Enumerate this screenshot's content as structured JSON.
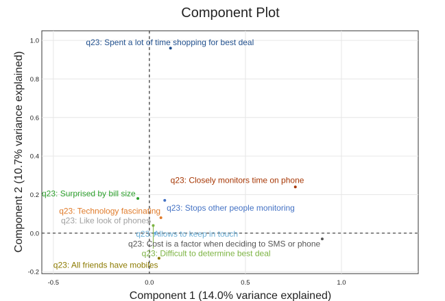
{
  "chart_data": {
    "type": "scatter",
    "title": "Component Plot",
    "xlabel": "Component 1 (14.0% variance explained)",
    "ylabel": "Component 2 (10.7% variance explained)",
    "xlim": [
      -0.56,
      1.4
    ],
    "ylim": [
      -0.21,
      1.05
    ],
    "xticks": [
      -0.5,
      0.0,
      0.5,
      1.0
    ],
    "xtick_labels": [
      "-0.5",
      "0.0",
      "0.5",
      "1.0"
    ],
    "yticks": [
      -0.2,
      0.0,
      0.2,
      0.4,
      0.6,
      0.8,
      1.0
    ],
    "ytick_labels": [
      "-0.2",
      "0.0",
      "0.2",
      "0.4",
      "0.6",
      "0.8",
      "1.0"
    ],
    "grid": true,
    "reference_lines": {
      "x": 0.0,
      "y": 0.0,
      "style": "dashed"
    },
    "points": [
      {
        "label": "q23: Spent a lot of time shopping for best deal",
        "x": 0.11,
        "y": 0.96,
        "color": "#1f4e8c",
        "label_x": -0.33,
        "label_y": 0.99
      },
      {
        "label": "q23: Closely monitors time on phone",
        "x": 0.76,
        "y": 0.24,
        "color": "#a63603",
        "label_x": 0.11,
        "label_y": 0.275
      },
      {
        "label": "q23: Surprised by bill size",
        "x": -0.06,
        "y": 0.18,
        "color": "#2ca02c",
        "label_x": -0.56,
        "label_y": 0.205
      },
      {
        "label": "q23: Stops other people monitoring",
        "x": 0.08,
        "y": 0.17,
        "color": "#4472c4",
        "label_x": 0.09,
        "label_y": 0.13
      },
      {
        "label": "q23: Technology fascinating",
        "x": 0.06,
        "y": 0.08,
        "color": "#e07b2a",
        "label_x": -0.47,
        "label_y": 0.115
      },
      {
        "label": "q23: Like look of phones",
        "x": 0.0,
        "y": 0.06,
        "color": "#a0a0a0",
        "label_x": -0.46,
        "label_y": 0.065
      },
      {
        "label": "q23: Allows to keep in touch",
        "x": 0.03,
        "y": 0.0,
        "color": "#6baed6",
        "label_x": -0.07,
        "label_y": -0.005
      },
      {
        "label": "q23: Cost is a factor when deciding to SMS or phone",
        "x": 0.9,
        "y": -0.03,
        "color": "#555555",
        "label_x": -0.11,
        "label_y": -0.055
      },
      {
        "label": "q23: Difficult to determine best deal",
        "x": 0.02,
        "y": 0.04,
        "color": "#7cb342",
        "label_x": -0.04,
        "label_y": -0.105
      },
      {
        "label": "q23: All friends have mobiles",
        "x": 0.05,
        "y": -0.13,
        "color": "#8c7a00",
        "label_x": -0.5,
        "label_y": -0.165
      }
    ]
  }
}
